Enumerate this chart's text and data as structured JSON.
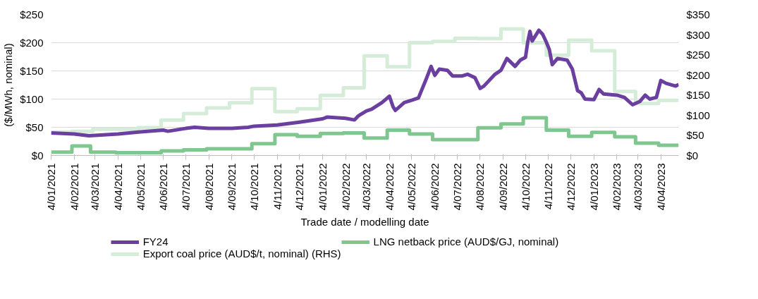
{
  "chart_data": {
    "type": "line",
    "xlabel": "Trade date / modelling date",
    "ylabel": "($/MWh, nominal)",
    "xlim": [
      "2021-01-04",
      "2023-04-28"
    ],
    "xticks": [
      {
        "value": "2021-01-04",
        "label": "4/01/2021"
      },
      {
        "value": "2021-02-04",
        "label": "4/02/2021"
      },
      {
        "value": "2021-03-04",
        "label": "4/03/2021"
      },
      {
        "value": "2021-04-04",
        "label": "4/04/2021"
      },
      {
        "value": "2021-05-04",
        "label": "4/05/2021"
      },
      {
        "value": "2021-06-04",
        "label": "4/06/2021"
      },
      {
        "value": "2021-07-04",
        "label": "4/07/2021"
      },
      {
        "value": "2021-08-04",
        "label": "4/08/2021"
      },
      {
        "value": "2021-09-04",
        "label": "4/09/2021"
      },
      {
        "value": "2021-10-04",
        "label": "4/10/2021"
      },
      {
        "value": "2021-11-04",
        "label": "4/11/2021"
      },
      {
        "value": "2021-12-04",
        "label": "4/12/2021"
      },
      {
        "value": "2022-01-04",
        "label": "4/01/2022"
      },
      {
        "value": "2022-02-04",
        "label": "4/02/2022"
      },
      {
        "value": "2022-03-04",
        "label": "4/03/2022"
      },
      {
        "value": "2022-04-04",
        "label": "4/04/2022"
      },
      {
        "value": "2022-05-04",
        "label": "4/05/2022"
      },
      {
        "value": "2022-06-04",
        "label": "4/06/2022"
      },
      {
        "value": "2022-07-04",
        "label": "4/07/2022"
      },
      {
        "value": "2022-08-04",
        "label": "4/08/2022"
      },
      {
        "value": "2022-09-04",
        "label": "4/09/2022"
      },
      {
        "value": "2022-10-04",
        "label": "4/10/2022"
      },
      {
        "value": "2022-11-04",
        "label": "4/11/2022"
      },
      {
        "value": "2022-12-04",
        "label": "4/12/2022"
      },
      {
        "value": "2023-01-04",
        "label": "4/01/2023"
      },
      {
        "value": "2023-02-04",
        "label": "4/02/2023"
      },
      {
        "value": "2023-03-04",
        "label": "4/03/2023"
      },
      {
        "value": "2023-04-04",
        "label": "4/04/2023"
      }
    ],
    "ylim": [
      0,
      250
    ],
    "yticks": [
      {
        "value": 0,
        "label": "$0"
      },
      {
        "value": 50,
        "label": "$50"
      },
      {
        "value": 100,
        "label": "$100"
      },
      {
        "value": 150,
        "label": "$150"
      },
      {
        "value": 200,
        "label": "$200"
      },
      {
        "value": 250,
        "label": "$250"
      }
    ],
    "y2lim": [
      0,
      350
    ],
    "y2ticks": [
      {
        "value": 0,
        "label": "$0"
      },
      {
        "value": 50,
        "label": "$50"
      },
      {
        "value": 100,
        "label": "$100"
      },
      {
        "value": 150,
        "label": "$150"
      },
      {
        "value": 200,
        "label": "$200"
      },
      {
        "value": 250,
        "label": "$250"
      },
      {
        "value": 300,
        "label": "$300"
      },
      {
        "value": 350,
        "label": "$350"
      }
    ],
    "grid": "y",
    "legend": "bottom",
    "series": [
      {
        "name": "Export coal price (AUD$/t, nominal) (RHS)",
        "type": "step",
        "axis": "y2",
        "color": "#d5ecd9",
        "x": [
          "2021-01-04",
          "2021-02-01",
          "2021-03-01",
          "2021-05-01",
          "2021-06-01",
          "2021-07-01",
          "2021-08-01",
          "2021-09-01",
          "2021-10-01",
          "2021-11-01",
          "2021-12-01",
          "2022-01-01",
          "2022-02-01",
          "2022-03-01",
          "2022-04-01",
          "2022-05-01",
          "2022-06-01",
          "2022-07-01",
          "2022-08-01",
          "2022-09-01",
          "2022-10-01",
          "2022-11-01",
          "2022-12-01",
          "2023-01-01",
          "2023-02-01",
          "2023-03-01",
          "2023-04-01",
          "2023-04-28"
        ],
        "values": [
          58,
          60,
          65,
          69,
          88,
          104,
          118,
          131,
          166,
          109,
          116,
          149,
          168,
          247,
          220,
          280,
          283,
          291,
          290,
          314,
          280,
          249,
          286,
          260,
          159,
          129,
          137,
          137
        ]
      },
      {
        "name": "LNG netback price (AUD$/GJ, nominal)",
        "type": "step",
        "color": "#7fc68f",
        "x": [
          "2021-01-04",
          "2021-02-01",
          "2021-02-26",
          "2021-04-01",
          "2021-06-01",
          "2021-07-01",
          "2021-08-01",
          "2021-10-01",
          "2021-11-01",
          "2021-12-01",
          "2022-01-01",
          "2022-02-01",
          "2022-03-01",
          "2022-04-01",
          "2022-05-01",
          "2022-06-01",
          "2022-08-01",
          "2022-09-01",
          "2022-10-01",
          "2022-11-01",
          "2022-12-01",
          "2023-01-01",
          "2023-02-01",
          "2023-03-01",
          "2023-04-01",
          "2023-04-28"
        ],
        "values": [
          6,
          17,
          6,
          5,
          8,
          10,
          12,
          21,
          37,
          34,
          39,
          40,
          31,
          45,
          38,
          28,
          49,
          56,
          67,
          45,
          34,
          41,
          33,
          22,
          18,
          18
        ]
      },
      {
        "name": "FY24",
        "type": "line",
        "color": "#6b3fa0",
        "x": [
          "2021-01-04",
          "2021-02-04",
          "2021-02-24",
          "2021-04-04",
          "2021-05-04",
          "2021-06-04",
          "2021-06-10",
          "2021-07-04",
          "2021-07-16",
          "2021-08-04",
          "2021-09-04",
          "2021-09-26",
          "2021-10-04",
          "2021-11-04",
          "2021-12-04",
          "2022-01-04",
          "2022-01-10",
          "2022-02-04",
          "2022-02-16",
          "2022-02-21",
          "2022-03-04",
          "2022-03-11",
          "2022-03-25",
          "2022-04-04",
          "2022-04-09",
          "2022-04-12",
          "2022-04-24",
          "2022-05-04",
          "2022-05-13",
          "2022-05-23",
          "2022-05-30",
          "2022-06-04",
          "2022-06-10",
          "2022-06-21",
          "2022-06-28",
          "2022-07-11",
          "2022-07-18",
          "2022-07-28",
          "2022-08-04",
          "2022-08-09",
          "2022-08-24",
          "2022-09-01",
          "2022-09-09",
          "2022-09-20",
          "2022-09-27",
          "2022-10-04",
          "2022-10-07",
          "2022-10-10",
          "2022-10-13",
          "2022-10-22",
          "2022-10-27",
          "2022-11-01",
          "2022-11-05",
          "2022-11-09",
          "2022-11-16",
          "2022-11-29",
          "2022-12-06",
          "2022-12-13",
          "2022-12-18",
          "2022-12-23",
          "2023-01-04",
          "2023-01-11",
          "2023-01-17",
          "2023-02-04",
          "2023-02-14",
          "2023-02-25",
          "2023-03-07",
          "2023-03-14",
          "2023-03-20",
          "2023-03-29",
          "2023-04-04",
          "2023-04-11",
          "2023-04-24",
          "2023-04-28"
        ],
        "values": [
          40,
          38,
          35,
          38,
          42,
          45,
          43,
          48,
          50,
          48,
          48,
          50,
          52,
          54,
          59,
          65,
          68,
          66,
          63,
          70,
          79,
          82,
          94,
          105,
          86,
          80,
          94,
          98,
          102,
          134,
          158,
          142,
          153,
          151,
          141,
          141,
          144,
          138,
          119,
          123,
          144,
          151,
          172,
          158,
          169,
          174,
          201,
          220,
          203,
          222,
          215,
          201,
          188,
          161,
          172,
          169,
          153,
          115,
          111,
          100,
          99,
          117,
          109,
          107,
          103,
          90,
          96,
          107,
          100,
          103,
          133,
          128,
          123,
          126
        ]
      }
    ]
  }
}
